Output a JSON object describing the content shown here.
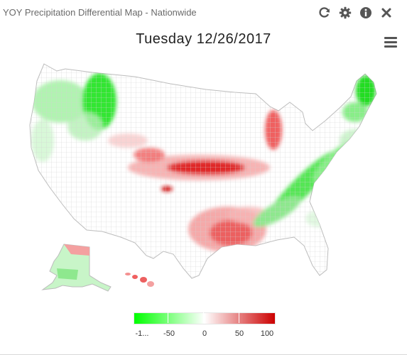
{
  "widget": {
    "title": "YOY Precipitation Differential Map - Nationwide",
    "icons": [
      "refresh-icon",
      "settings-icon",
      "info-icon",
      "close-icon"
    ]
  },
  "map": {
    "date_title": "Tuesday 12/26/2017",
    "menu_icon": "hamburger-menu-icon",
    "color_scale": {
      "min_color": "#00ff00",
      "mid_color": "#ffffff",
      "max_color": "#cc0000"
    }
  },
  "legend": {
    "ticks": [
      "-1...",
      "-50",
      "0",
      "50",
      "100"
    ]
  }
}
